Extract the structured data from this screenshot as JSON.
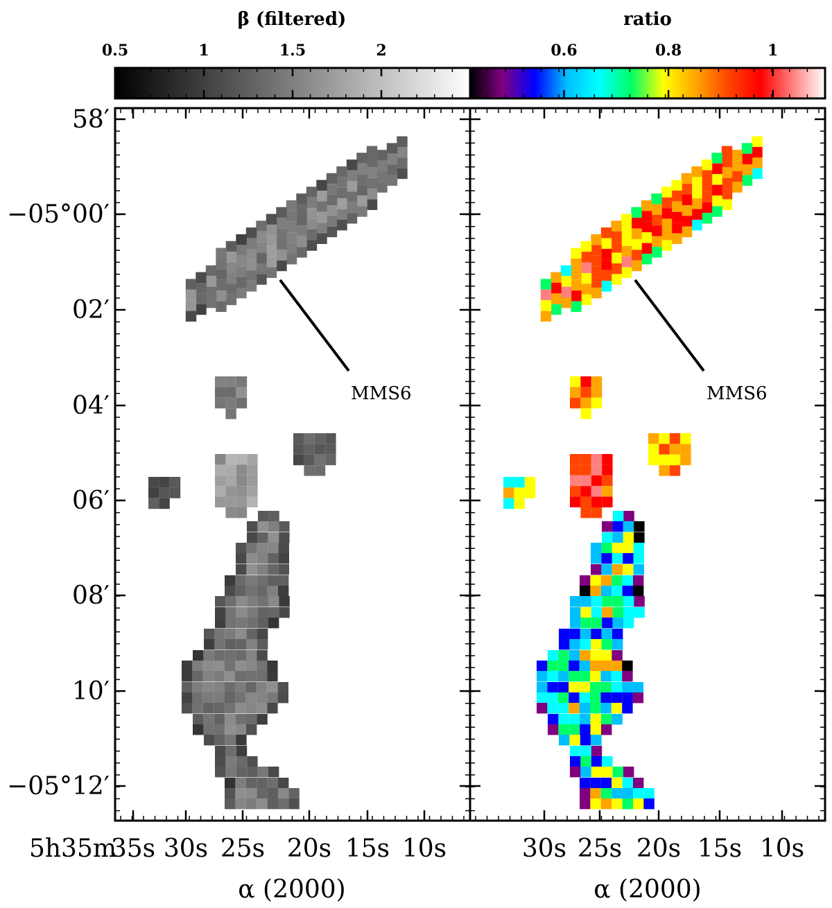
{
  "chart_data": [
    {
      "type": "colorbar",
      "title": "β (filtered)",
      "ticks": [
        "0.5",
        "1",
        "1.5",
        "2"
      ],
      "tick_values": [
        0.5,
        1.0,
        1.5,
        2.0
      ],
      "range": [
        0.5,
        2.5
      ],
      "colormap": "gray"
    },
    {
      "type": "colorbar",
      "title": "ratio",
      "ticks": [
        "0.6",
        "0.8",
        "1"
      ],
      "tick_values": [
        0.6,
        0.8,
        1.0
      ],
      "range": [
        0.42,
        1.1
      ],
      "colormap": "rainbow",
      "stops": [
        "#000000",
        "#800080",
        "#0000ff",
        "#00bfff",
        "#00ffff",
        "#00ff66",
        "#ffff00",
        "#ffa500",
        "#ff4500",
        "#ff0000",
        "#ff8080",
        "#ffffff"
      ]
    },
    {
      "type": "heatmap",
      "panel": "beta",
      "xlabel": "α (2000)",
      "ylabel": "",
      "x_ticks": [
        "35s",
        "30s",
        "25s",
        "20s",
        "15s",
        "10s"
      ],
      "x_first_label_prefix": "5h35m",
      "y_ticks": [
        "58′",
        "−05°00′",
        "02′",
        "04′",
        "06′",
        "08′",
        "10′",
        "−05°12′"
      ],
      "annotation": "MMS6",
      "color_scale": "gray",
      "regions": [
        {
          "name": "northern filament",
          "approx_beta": 1.4
        },
        {
          "name": "small clump 1",
          "approx_beta": 1.4
        },
        {
          "name": "small clump 2",
          "approx_beta": 1.0
        },
        {
          "name": "small clump 3",
          "approx_beta": 1.7
        },
        {
          "name": "small clump 4",
          "approx_beta": 1.0
        },
        {
          "name": "southern filament",
          "approx_beta": 1.3
        }
      ]
    },
    {
      "type": "heatmap",
      "panel": "ratio",
      "xlabel": "α (2000)",
      "ylabel": "",
      "x_ticks": [
        "30s",
        "25s",
        "20s",
        "15s",
        "10s"
      ],
      "annotation": "MMS6",
      "color_scale": "rainbow",
      "regions": [
        {
          "name": "northern filament",
          "approx_ratio": 0.9
        },
        {
          "name": "small clump 1",
          "approx_ratio": 0.88
        },
        {
          "name": "small clump 2",
          "approx_ratio": 0.75
        },
        {
          "name": "small clump 3",
          "approx_ratio": 0.95
        },
        {
          "name": "small clump 4",
          "approx_ratio": 0.85
        },
        {
          "name": "southern filament",
          "approx_ratio": 0.7
        }
      ]
    }
  ],
  "labels": {
    "beta_title": "β (filtered)",
    "ratio_title": "ratio",
    "x_axis_left": "α (2000)",
    "x_axis_right": "α (2000)",
    "annotation_left": "MMS6",
    "annotation_right": "MMS6",
    "x_first_prefix": "5h35m"
  }
}
